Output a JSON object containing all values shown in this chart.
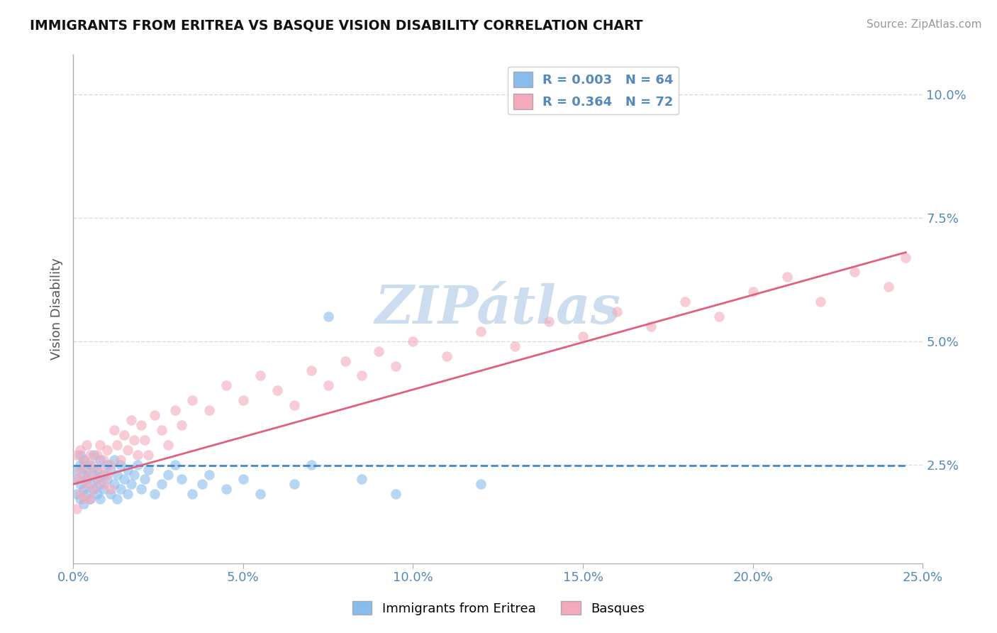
{
  "title": "IMMIGRANTS FROM ERITREA VS BASQUE VISION DISABILITY CORRELATION CHART",
  "source": "Source: ZipAtlas.com",
  "ylabel": "Vision Disability",
  "xlim": [
    0.0,
    0.25
  ],
  "ylim": [
    0.005,
    0.108
  ],
  "xticks": [
    0.0,
    0.05,
    0.1,
    0.15,
    0.2,
    0.25
  ],
  "yticks_right": [
    0.025,
    0.05,
    0.075,
    0.1
  ],
  "ytick_labels_right": [
    "2.5%",
    "5.0%",
    "7.5%",
    "10.0%"
  ],
  "xtick_labels": [
    "0.0%",
    "5.0%",
    "10.0%",
    "15.0%",
    "20.0%",
    "25.0%"
  ],
  "legend_entry_blue": "R = 0.003   N = 64",
  "legend_entry_pink": "R = 0.364   N = 72",
  "blue_scatter_x": [
    0.001,
    0.001,
    0.001,
    0.002,
    0.002,
    0.002,
    0.002,
    0.003,
    0.003,
    0.003,
    0.003,
    0.004,
    0.004,
    0.004,
    0.005,
    0.005,
    0.005,
    0.006,
    0.006,
    0.006,
    0.007,
    0.007,
    0.007,
    0.008,
    0.008,
    0.008,
    0.009,
    0.009,
    0.01,
    0.01,
    0.011,
    0.011,
    0.012,
    0.012,
    0.013,
    0.013,
    0.014,
    0.014,
    0.015,
    0.016,
    0.016,
    0.017,
    0.018,
    0.019,
    0.02,
    0.021,
    0.022,
    0.024,
    0.026,
    0.028,
    0.03,
    0.032,
    0.035,
    0.038,
    0.04,
    0.045,
    0.05,
    0.055,
    0.065,
    0.07,
    0.075,
    0.085,
    0.095,
    0.12
  ],
  "blue_scatter_y": [
    0.024,
    0.022,
    0.019,
    0.025,
    0.021,
    0.018,
    0.027,
    0.023,
    0.02,
    0.017,
    0.026,
    0.024,
    0.022,
    0.019,
    0.025,
    0.021,
    0.018,
    0.023,
    0.02,
    0.027,
    0.022,
    0.019,
    0.024,
    0.026,
    0.021,
    0.018,
    0.023,
    0.02,
    0.025,
    0.022,
    0.024,
    0.019,
    0.021,
    0.026,
    0.023,
    0.018,
    0.025,
    0.02,
    0.022,
    0.024,
    0.019,
    0.021,
    0.023,
    0.025,
    0.02,
    0.022,
    0.024,
    0.019,
    0.021,
    0.023,
    0.025,
    0.022,
    0.019,
    0.021,
    0.023,
    0.02,
    0.022,
    0.019,
    0.021,
    0.025,
    0.055,
    0.022,
    0.019,
    0.021
  ],
  "pink_scatter_x": [
    0.001,
    0.001,
    0.001,
    0.002,
    0.002,
    0.002,
    0.003,
    0.003,
    0.003,
    0.004,
    0.004,
    0.004,
    0.005,
    0.005,
    0.005,
    0.006,
    0.006,
    0.007,
    0.007,
    0.008,
    0.008,
    0.009,
    0.009,
    0.01,
    0.01,
    0.011,
    0.011,
    0.012,
    0.013,
    0.014,
    0.015,
    0.016,
    0.017,
    0.018,
    0.019,
    0.02,
    0.021,
    0.022,
    0.024,
    0.026,
    0.028,
    0.03,
    0.032,
    0.035,
    0.04,
    0.045,
    0.05,
    0.055,
    0.06,
    0.065,
    0.07,
    0.075,
    0.08,
    0.085,
    0.09,
    0.095,
    0.1,
    0.11,
    0.12,
    0.13,
    0.14,
    0.15,
    0.16,
    0.17,
    0.18,
    0.19,
    0.2,
    0.21,
    0.22,
    0.23,
    0.24,
    0.245
  ],
  "pink_scatter_y": [
    0.027,
    0.022,
    0.016,
    0.028,
    0.024,
    0.019,
    0.026,
    0.022,
    0.018,
    0.025,
    0.021,
    0.029,
    0.027,
    0.023,
    0.018,
    0.025,
    0.02,
    0.027,
    0.022,
    0.029,
    0.024,
    0.026,
    0.021,
    0.028,
    0.023,
    0.025,
    0.02,
    0.032,
    0.029,
    0.026,
    0.031,
    0.028,
    0.034,
    0.03,
    0.027,
    0.033,
    0.03,
    0.027,
    0.035,
    0.032,
    0.029,
    0.036,
    0.033,
    0.038,
    0.036,
    0.041,
    0.038,
    0.043,
    0.04,
    0.037,
    0.044,
    0.041,
    0.046,
    0.043,
    0.048,
    0.045,
    0.05,
    0.047,
    0.052,
    0.049,
    0.054,
    0.051,
    0.056,
    0.053,
    0.058,
    0.055,
    0.06,
    0.063,
    0.058,
    0.064,
    0.061,
    0.067
  ],
  "blue_line_x": [
    0.0,
    0.245
  ],
  "blue_line_y": [
    0.0248,
    0.0248
  ],
  "pink_line_x": [
    0.0,
    0.245
  ],
  "pink_line_y": [
    0.021,
    0.068
  ],
  "scatter_alpha": 0.6,
  "scatter_size": 110,
  "blue_color": "#88BBEE",
  "pink_color": "#F4AABB",
  "blue_line_color": "#4488CC",
  "pink_line_color": "#E06080",
  "watermark_text": "ZIPátlas",
  "watermark_color": "#CCDDF0",
  "grid_color": "#CCCCCC",
  "grid_linestyle": "--",
  "grid_alpha": 0.7,
  "background_color": "#FFFFFF"
}
